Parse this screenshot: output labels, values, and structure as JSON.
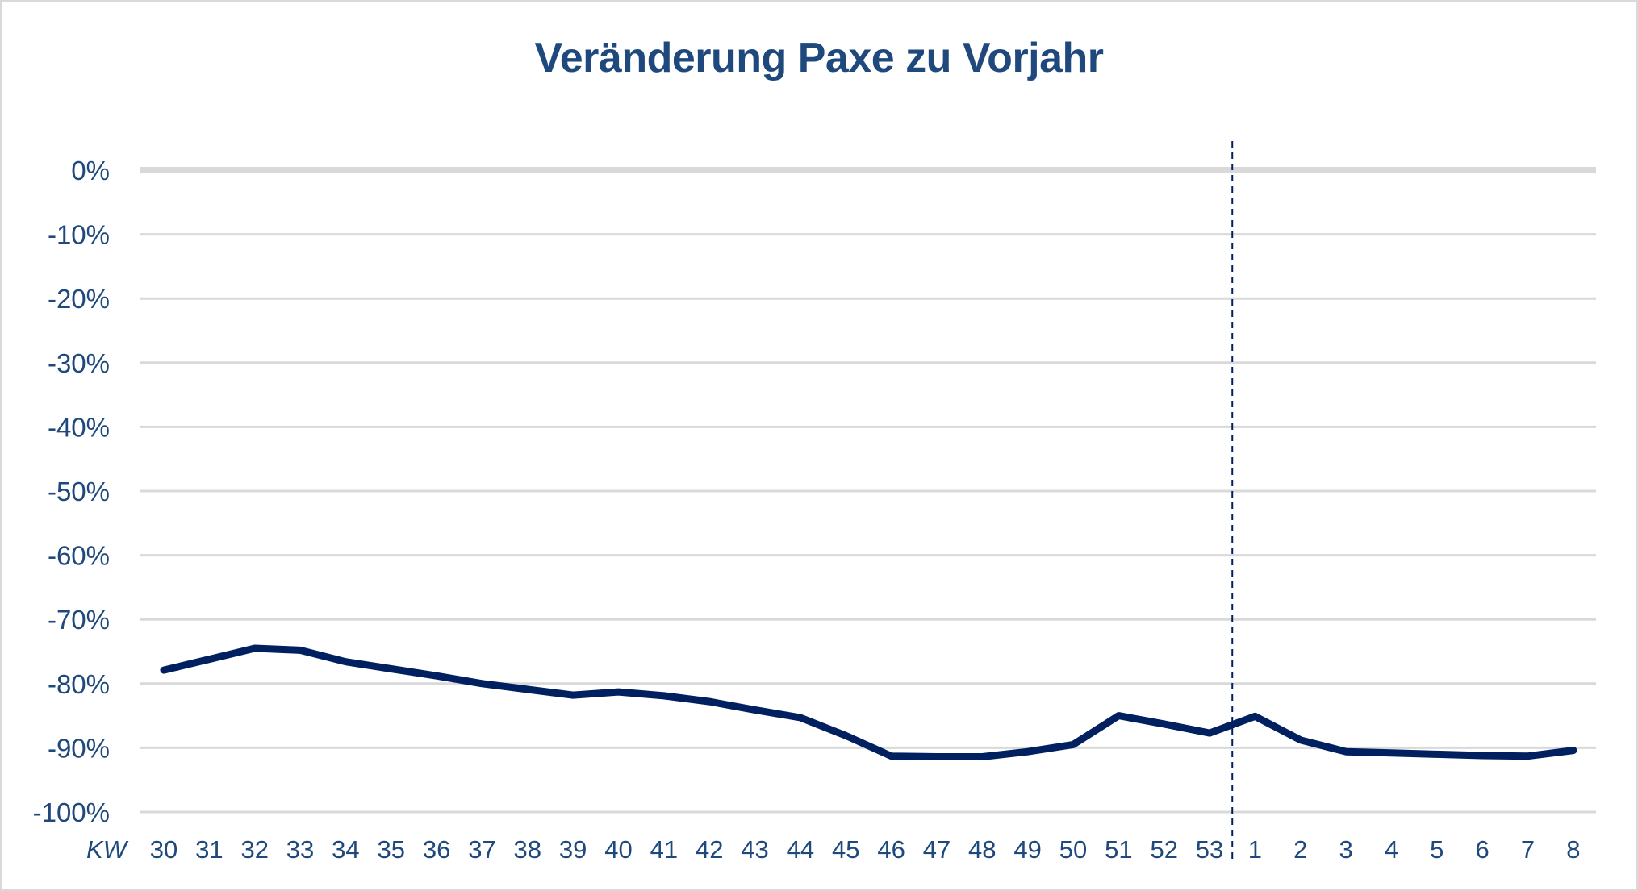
{
  "chart_data": {
    "type": "line",
    "title": "Veränderung Paxe zu Vorjahr",
    "xlabel": "KW",
    "ylabel": "",
    "categories": [
      "30",
      "31",
      "32",
      "33",
      "34",
      "35",
      "36",
      "37",
      "38",
      "39",
      "40",
      "41",
      "42",
      "43",
      "44",
      "45",
      "46",
      "47",
      "48",
      "49",
      "50",
      "51",
      "52",
      "53",
      "1",
      "2",
      "3",
      "4",
      "5",
      "6",
      "7",
      "8"
    ],
    "series": [
      {
        "name": "Veränderung Paxe zu Vorjahr",
        "color": "#002060",
        "values": [
          -77.9,
          -76.2,
          -74.5,
          -74.8,
          -76.6,
          -77.7,
          -78.8,
          -80.0,
          -80.9,
          -81.8,
          -81.3,
          -81.9,
          -82.8,
          -84.1,
          -85.3,
          -88.1,
          -91.3,
          -91.4,
          -91.4,
          -90.6,
          -89.5,
          -85.0,
          -86.3,
          -87.7,
          -85.1,
          -88.8,
          -90.6,
          -90.8,
          -91.0,
          -91.2,
          -91.3,
          -90.4
        ]
      }
    ],
    "yticks": [
      "0%",
      "-10%",
      "-20%",
      "-30%",
      "-40%",
      "-50%",
      "-60%",
      "-70%",
      "-80%",
      "-90%",
      "-100%"
    ],
    "ylim": [
      -100,
      0
    ],
    "grid": true,
    "legend": "none",
    "annotations": [
      {
        "type": "vertical-dashed-line",
        "between": [
          "53",
          "1"
        ],
        "meaning": "year boundary"
      }
    ]
  },
  "colors": {
    "title": "#1f497d",
    "line": "#002060",
    "grid": "#d9d9d9",
    "labels": "#1f497d"
  }
}
